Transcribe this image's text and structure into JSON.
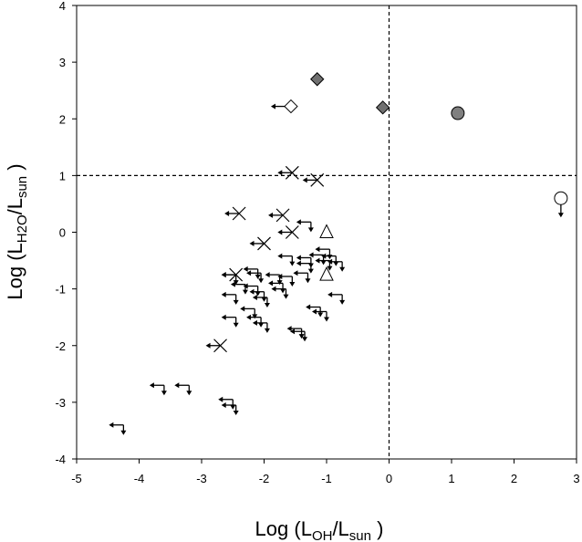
{
  "chart_data": {
    "type": "scatter",
    "xlabel": {
      "prefix": "Log (L",
      "sub": "OH",
      "mid": "/L",
      "sub2": "sun",
      "suffix": " )"
    },
    "ylabel": {
      "prefix": "Log (L",
      "sub": "H2O",
      "mid": "/L",
      "sub2": "sun",
      "suffix": " )"
    },
    "xlim": [
      -5,
      3
    ],
    "ylim": [
      -4,
      4
    ],
    "xticks": [
      "-5",
      "-4",
      "-3",
      "-2",
      "-1",
      "0",
      "1",
      "2",
      "3"
    ],
    "yticks": [
      "-4",
      "-3",
      "-2",
      "-1",
      "0",
      "1",
      "2",
      "3",
      "4"
    ],
    "grid": false,
    "reference_lines": [
      {
        "orientation": "vertical",
        "value": 0,
        "style": "dashed"
      },
      {
        "orientation": "horizontal",
        "value": 1,
        "style": "dashed"
      }
    ],
    "series": [
      {
        "marker": "filled-diamond",
        "color": "#707070",
        "points": [
          {
            "x": -1.15,
            "y": 2.7
          },
          {
            "x": -0.1,
            "y": 2.2
          }
        ]
      },
      {
        "marker": "open-diamond-left-arrow",
        "color": "#000000",
        "points": [
          {
            "x": -1.57,
            "y": 2.22
          }
        ]
      },
      {
        "marker": "filled-circle",
        "color": "#808080",
        "points": [
          {
            "x": 1.1,
            "y": 2.1
          }
        ]
      },
      {
        "marker": "open-circle-down-arrow",
        "color": "#000000",
        "points": [
          {
            "x": 2.75,
            "y": 0.6
          }
        ]
      },
      {
        "marker": "open-triangle",
        "color": "#000000",
        "points": [
          {
            "x": -1.0,
            "y": 0.0
          },
          {
            "x": -1.0,
            "y": -0.75
          }
        ]
      },
      {
        "marker": "cross-left-arrow",
        "color": "#000000",
        "points": [
          {
            "x": -1.55,
            "y": 1.05
          },
          {
            "x": -1.15,
            "y": 0.92
          },
          {
            "x": -2.4,
            "y": 0.33
          },
          {
            "x": -1.7,
            "y": 0.3
          },
          {
            "x": -1.55,
            "y": 0.0
          },
          {
            "x": -2.0,
            "y": -0.2
          },
          {
            "x": -2.45,
            "y": -0.75
          },
          {
            "x": -2.7,
            "y": -2.0
          }
        ]
      },
      {
        "marker": "left-down-arrows",
        "color": "#000000",
        "points": [
          {
            "x": -1.25,
            "y": 0.18
          },
          {
            "x": -1.55,
            "y": -0.42
          },
          {
            "x": -1.25,
            "y": -0.45
          },
          {
            "x": -1.05,
            "y": -0.4
          },
          {
            "x": -0.95,
            "y": -0.3
          },
          {
            "x": -0.85,
            "y": -0.42
          },
          {
            "x": -0.75,
            "y": -0.52
          },
          {
            "x": -1.25,
            "y": -0.55
          },
          {
            "x": -0.95,
            "y": -0.5
          },
          {
            "x": -2.45,
            "y": -0.75
          },
          {
            "x": -2.1,
            "y": -0.65
          },
          {
            "x": -2.05,
            "y": -0.72
          },
          {
            "x": -1.75,
            "y": -0.75
          },
          {
            "x": -1.55,
            "y": -0.78
          },
          {
            "x": -1.3,
            "y": -0.72
          },
          {
            "x": -1.7,
            "y": -0.9
          },
          {
            "x": -1.65,
            "y": -1.0
          },
          {
            "x": -2.3,
            "y": -0.92
          },
          {
            "x": -2.1,
            "y": -0.95
          },
          {
            "x": -2.0,
            "y": -1.05
          },
          {
            "x": -1.95,
            "y": -1.15
          },
          {
            "x": -2.45,
            "y": -1.1
          },
          {
            "x": -0.75,
            "y": -1.1
          },
          {
            "x": -1.1,
            "y": -1.32
          },
          {
            "x": -1.0,
            "y": -1.4
          },
          {
            "x": -2.15,
            "y": -1.35
          },
          {
            "x": -2.45,
            "y": -1.5
          },
          {
            "x": -2.05,
            "y": -1.5
          },
          {
            "x": -1.95,
            "y": -1.6
          },
          {
            "x": -1.4,
            "y": -1.7
          },
          {
            "x": -1.35,
            "y": -1.75
          },
          {
            "x": -2.5,
            "y": -2.95
          },
          {
            "x": -2.45,
            "y": -3.05
          },
          {
            "x": -3.2,
            "y": -2.7
          },
          {
            "x": -3.6,
            "y": -2.7
          },
          {
            "x": -4.25,
            "y": -3.4
          }
        ]
      }
    ]
  }
}
